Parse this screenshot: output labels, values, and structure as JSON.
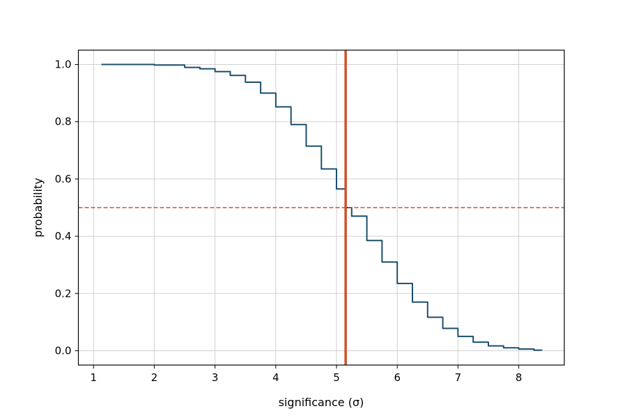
{
  "chart_data": {
    "type": "line",
    "title": "",
    "xlabel": "significance (σ)",
    "ylabel": "probability",
    "xlim": [
      0.75,
      8.75
    ],
    "ylim": [
      -0.05,
      1.05
    ],
    "x_ticks": [
      1,
      2,
      3,
      4,
      5,
      6,
      7,
      8
    ],
    "x_tick_labels": [
      "1",
      "2",
      "3",
      "4",
      "5",
      "6",
      "7",
      "8"
    ],
    "y_ticks": [
      0.0,
      0.2,
      0.4,
      0.6,
      0.8,
      1.0
    ],
    "y_tick_labels": [
      "0.0",
      "0.2",
      "0.4",
      "0.6",
      "0.8",
      "1.0"
    ],
    "grid": true,
    "series": [
      {
        "color": "#1b4f6e",
        "x": [
          1.13,
          1.5,
          2.0,
          2.5,
          2.75,
          3.0,
          3.25,
          3.5,
          3.75,
          4.0,
          4.25,
          4.5,
          4.75,
          5.0,
          5.15,
          5.25,
          5.5,
          5.75,
          6.0,
          6.25,
          6.5,
          6.75,
          7.0,
          7.25,
          7.5,
          7.75,
          8.0,
          8.25,
          8.38
        ],
        "y": [
          1.0,
          1.0,
          0.998,
          0.99,
          0.985,
          0.975,
          0.962,
          0.938,
          0.9,
          0.852,
          0.79,
          0.715,
          0.635,
          0.565,
          0.5,
          0.47,
          0.385,
          0.31,
          0.235,
          0.17,
          0.117,
          0.078,
          0.05,
          0.03,
          0.017,
          0.01,
          0.006,
          0.002,
          0.001
        ]
      }
    ],
    "reference_lines": {
      "vertical_x": 5.15,
      "horizontal_y": 0.5,
      "color": "#d0502a"
    }
  }
}
